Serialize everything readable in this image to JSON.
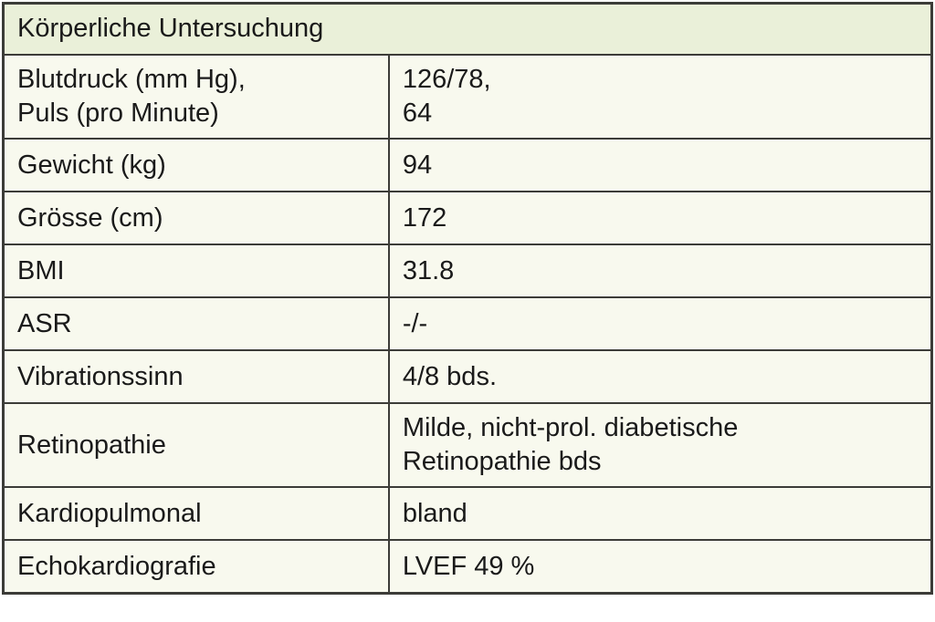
{
  "table": {
    "title": "Körperliche Untersuchung",
    "colors": {
      "header_bg": "#eaf0d9",
      "body_bg": "#f8f9ee",
      "border": "#3c3c38",
      "text": "#1a1a1a"
    },
    "rows": [
      {
        "label": "Blutdruck (mm Hg),\nPuls (pro Minute)",
        "value": "126/78,\n64"
      },
      {
        "label": "Gewicht (kg)",
        "value": "94"
      },
      {
        "label": "Grösse (cm)",
        "value": "172"
      },
      {
        "label": "BMI",
        "value": "31.8"
      },
      {
        "label": "ASR",
        "value": "-/-"
      },
      {
        "label": "Vibrationssinn",
        "value": "4/8 bds."
      },
      {
        "label": "Retinopathie",
        "value": "Milde, nicht-prol. diabetische\nRetinopathie bds"
      },
      {
        "label": "Kardiopulmonal",
        "value": "bland"
      },
      {
        "label": "Echokardiografie",
        "value": "LVEF 49 %"
      }
    ]
  }
}
